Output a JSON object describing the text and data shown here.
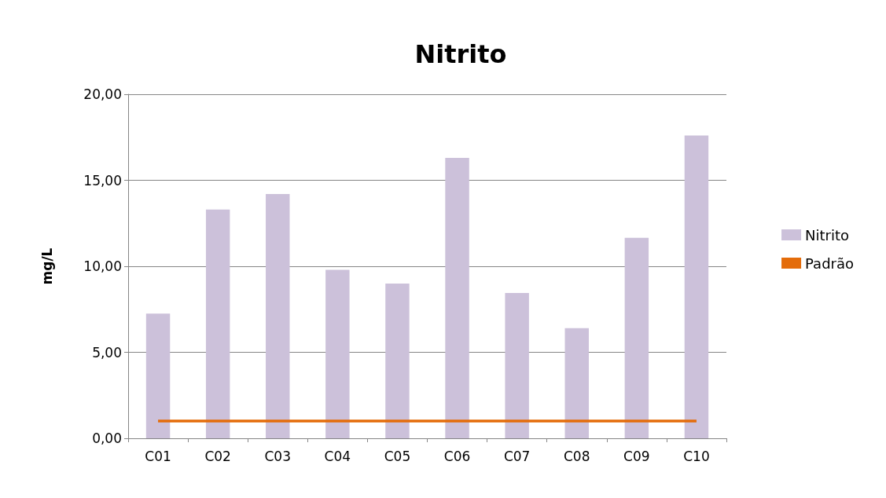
{
  "chart_data": {
    "type": "bar",
    "title": "Nitrito",
    "ylabel": "mg/L",
    "categories": [
      "C01",
      "C02",
      "C03",
      "C04",
      "C05",
      "C06",
      "C07",
      "C08",
      "C09",
      "C10"
    ],
    "series": [
      {
        "name": "Nitrito",
        "color": "#ccc1da",
        "values": [
          7.25,
          13.3,
          14.2,
          9.8,
          9.0,
          16.3,
          8.45,
          6.4,
          11.65,
          17.6
        ]
      },
      {
        "name": "Padrão",
        "type": "line",
        "color": "#e46c0a",
        "marker": "none",
        "values": [
          1,
          1,
          1,
          1,
          1,
          1,
          1,
          1,
          1,
          1
        ]
      }
    ],
    "ylim": [
      0,
      20
    ],
    "yticks": [
      {
        "value": 0,
        "label": "0,00"
      },
      {
        "value": 5,
        "label": "5,00"
      },
      {
        "value": 10,
        "label": "10,00"
      },
      {
        "value": 15,
        "label": "15,00"
      },
      {
        "value": 20,
        "label": "20,00"
      }
    ],
    "grid": "y",
    "legend": "right"
  }
}
